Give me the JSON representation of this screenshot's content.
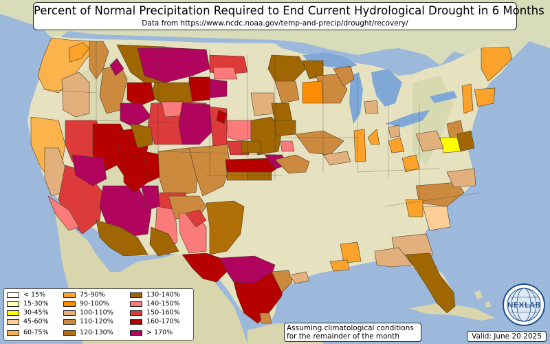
{
  "title": "Percent of Normal Precipitation Required to End Current Hydrological Drought in 6 Months",
  "subtitle": "Data from https://www.ncdc.noaa.gov/temp-and-precip/drought/recovery/",
  "legend": [
    {
      "label": "< 15%",
      "color": "#fffff2"
    },
    {
      "label": "15-30%",
      "color": "#ffffb2"
    },
    {
      "label": "30-45%",
      "color": "#ffff00"
    },
    {
      "label": "45-60%",
      "color": "#fdcf96"
    },
    {
      "label": "60-75%",
      "color": "#fbb34c"
    },
    {
      "label": "75-90%",
      "color": "#fba22a"
    },
    {
      "label": "90-100%",
      "color": "#fc8c04"
    },
    {
      "label": "100-110%",
      "color": "#e1b07d"
    },
    {
      "label": "110-120%",
      "color": "#cc8a3f"
    },
    {
      "label": "120-130%",
      "color": "#b17007"
    },
    {
      "label": "130-140%",
      "color": "#a06601"
    },
    {
      "label": "140-150%",
      "color": "#fb7a7a"
    },
    {
      "label": "150-160%",
      "color": "#dd3a3a"
    },
    {
      "label": "160-170%",
      "color": "#b70000"
    },
    {
      "label": "> 170%",
      "color": "#b0045f"
    }
  ],
  "note": {
    "line1": "Assuming climatological conditions",
    "line2": "for the remainder of the month"
  },
  "valid": "Valid: June 20 2025",
  "logo": {
    "text": "NEXLAB",
    "icon": "nexlab-globe-logo"
  },
  "colors": {
    "ocean": "#9cb9dc",
    "land": "#e6e2bf",
    "lakes": "#7fa8d6",
    "terrain": "#c7cfa4"
  }
}
